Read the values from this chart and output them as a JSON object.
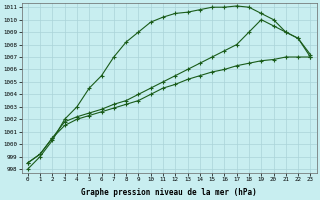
{
  "title": "Graphe pression niveau de la mer (hPa)",
  "background_color": "#c8eef0",
  "grid_color": "#aad4d8",
  "line_color": "#1a5c1a",
  "x_min": 0,
  "x_max": 23,
  "y_min": 998,
  "y_max": 1011,
  "series": [
    {
      "x": [
        0,
        1,
        2,
        3,
        4,
        5,
        6,
        7,
        8,
        9,
        10,
        11,
        12,
        13,
        14,
        15,
        16,
        17,
        18,
        19,
        20,
        21,
        22,
        23
      ],
      "y": [
        998.0,
        999.0,
        1000.3,
        1002.0,
        1003.0,
        1004.5,
        1005.5,
        1007.0,
        1008.2,
        1009.0,
        1009.8,
        1010.2,
        1010.5,
        1010.6,
        1010.8,
        1011.0,
        1011.0,
        1011.1,
        1011.0,
        1010.5,
        1010.0,
        1009.0,
        1008.5,
        1007.2
      ]
    },
    {
      "x": [
        0,
        1,
        2,
        3,
        4,
        5,
        6,
        7,
        8,
        9,
        10,
        11,
        12,
        13,
        14,
        15,
        16,
        17,
        18,
        19,
        20,
        21,
        22,
        23
      ],
      "y": [
        998.5,
        999.2,
        1000.5,
        1001.8,
        1002.2,
        1002.5,
        1002.8,
        1003.2,
        1003.5,
        1004.0,
        1004.5,
        1005.0,
        1005.5,
        1006.0,
        1006.5,
        1007.0,
        1007.5,
        1008.0,
        1009.0,
        1010.0,
        1009.5,
        1009.0,
        1008.5,
        1007.0
      ]
    },
    {
      "x": [
        0,
        1,
        2,
        3,
        4,
        5,
        6,
        7,
        8,
        9,
        10,
        11,
        12,
        13,
        14,
        15,
        16,
        17,
        18,
        19,
        20,
        21,
        22,
        23
      ],
      "y": [
        998.5,
        999.2,
        1000.5,
        1001.5,
        1002.0,
        1002.3,
        1002.6,
        1002.9,
        1003.2,
        1003.5,
        1004.0,
        1004.5,
        1004.8,
        1005.2,
        1005.5,
        1005.8,
        1006.0,
        1006.3,
        1006.5,
        1006.7,
        1006.8,
        1007.0,
        1007.0,
        1007.0
      ]
    }
  ]
}
